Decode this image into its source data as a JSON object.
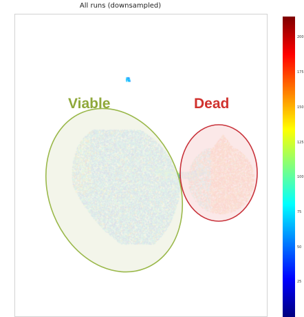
{
  "chart_data": {
    "type": "scatter",
    "title": "All runs (downsampled)",
    "xlabel": "",
    "ylabel": "",
    "grid": false,
    "annotations": [
      {
        "text": "Viable",
        "color": "#8fa83a"
      },
      {
        "text": "Dead",
        "color": "#d0322e"
      }
    ],
    "colorbar": {
      "colormap": "jet",
      "ticks": [
        25,
        50,
        75,
        100,
        125,
        150,
        175,
        200
      ],
      "tick_labels": [
        "25",
        "50",
        "75",
        "100",
        "125",
        "150",
        "175",
        "200"
      ],
      "range": [
        0,
        215
      ]
    },
    "clusters": [
      {
        "name": "Viable",
        "value_range": [
          20,
          110
        ],
        "outline_color": "#9ab84a",
        "fill_color": "#f2f4e8"
      },
      {
        "name": "Dead",
        "value_range": [
          120,
          200
        ],
        "outline_color": "#c8323a",
        "fill_color": "#fbe6e6"
      }
    ]
  }
}
